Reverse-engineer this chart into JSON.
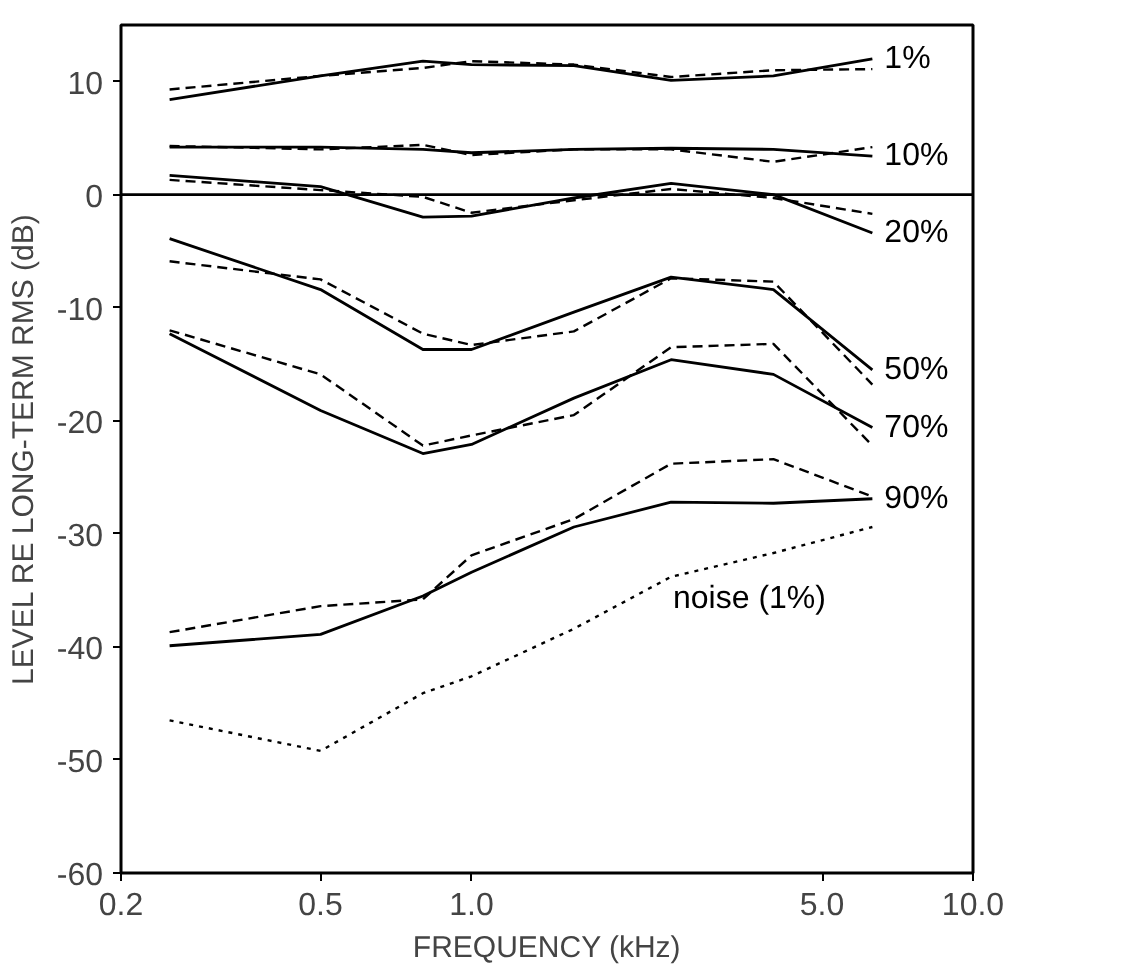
{
  "chart_data": {
    "type": "line",
    "xlabel": "FREQUENCY (kHz)",
    "ylabel": "LEVEL RE LONG-TERM RMS (dB)",
    "log": "x",
    "xlim": [
      0.2,
      10
    ],
    "ylim": [
      -60,
      15
    ],
    "xticks": [
      {
        "value": 0.2,
        "label": "0.2"
      },
      {
        "value": 0.5,
        "label": "0.5"
      },
      {
        "value": 1,
        "label": "1.0"
      },
      {
        "value": 5,
        "label": "5.0"
      },
      {
        "value": 10,
        "label": "10.0"
      }
    ],
    "yticks": [
      -60,
      -50,
      -40,
      -30,
      -20,
      -10,
      0,
      10
    ],
    "x": [
      0.25,
      0.5,
      0.8,
      1.0,
      1.6,
      2.5,
      4.0,
      6.3
    ],
    "grid": false,
    "ref_lines": [
      {
        "axis": "y",
        "value": 0,
        "color": "#000000"
      }
    ],
    "series": [
      {
        "name": "1%",
        "color": "#000000",
        "line_style": "solid",
        "values": [
          8.4,
          10.5,
          11.8,
          11.5,
          11.4,
          10.1,
          10.5,
          12.0
        ]
      },
      {
        "color": "#000000",
        "line_style": "dashed",
        "values": [
          9.3,
          10.5,
          11.2,
          11.8,
          11.5,
          10.4,
          11.0,
          11.1
        ]
      },
      {
        "name": "10%",
        "color": "#000000",
        "line_style": "solid",
        "values": [
          4.2,
          4.2,
          4.0,
          3.7,
          4.0,
          4.1,
          4.0,
          3.4
        ]
      },
      {
        "color": "#000000",
        "line_style": "dashed",
        "values": [
          4.3,
          4.0,
          4.4,
          3.5,
          4.0,
          4.0,
          2.9,
          4.2
        ]
      },
      {
        "name": "20%",
        "color": "#000000",
        "line_style": "solid",
        "values": [
          1.7,
          0.7,
          -2.0,
          -1.9,
          -0.3,
          1.0,
          0.0,
          -3.4
        ]
      },
      {
        "color": "#000000",
        "line_style": "dashed",
        "values": [
          1.3,
          0.4,
          -0.2,
          -1.6,
          -0.5,
          0.5,
          -0.3,
          -1.7
        ]
      },
      {
        "name": "50%",
        "color": "#000000",
        "line_style": "solid",
        "values": [
          -3.9,
          -8.4,
          -13.7,
          -13.7,
          -10.4,
          -7.3,
          -8.4,
          -15.5
        ]
      },
      {
        "color": "#000000",
        "line_style": "dashed",
        "values": [
          -5.9,
          -7.5,
          -12.3,
          -13.3,
          -12.1,
          -7.4,
          -7.7,
          -16.8
        ]
      },
      {
        "name": "70%",
        "color": "#000000",
        "line_style": "solid",
        "values": [
          -12.3,
          -19.1,
          -22.9,
          -22.1,
          -18.0,
          -14.6,
          -15.9,
          -20.6
        ]
      },
      {
        "color": "#000000",
        "line_style": "dashed",
        "values": [
          -12.0,
          -15.9,
          -22.2,
          -21.3,
          -19.5,
          -13.5,
          -13.2,
          -22.2
        ]
      },
      {
        "name": "90%",
        "color": "#000000",
        "line_style": "solid",
        "values": [
          -39.9,
          -38.9,
          -35.5,
          -33.4,
          -29.4,
          -27.2,
          -27.3,
          -26.9
        ]
      },
      {
        "color": "#000000",
        "line_style": "dashed",
        "values": [
          -38.7,
          -36.4,
          -35.8,
          -31.9,
          -28.7,
          -23.8,
          -23.4,
          -26.7
        ]
      },
      {
        "color": "#000000",
        "line_style": "dotted",
        "values": [
          -46.5,
          -49.2,
          -44.1,
          -42.6,
          -38.4,
          -33.8,
          -31.7,
          -29.4
        ]
      }
    ],
    "annotations": [
      "noise (1%)"
    ]
  }
}
